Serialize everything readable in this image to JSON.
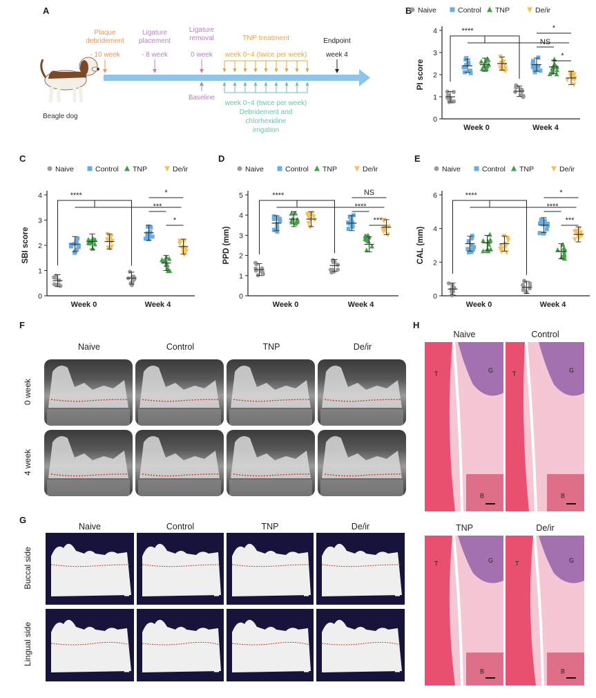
{
  "panels": {
    "A": "A",
    "B": "B",
    "C": "C",
    "D": "D",
    "E": "E",
    "F": "F",
    "G": "G",
    "H": "H"
  },
  "timeline": {
    "dog_label": "Beagle dog",
    "plaque": "Plaque debridement",
    "plaque_time": "- 10 week",
    "ligature_place": "Ligature placement",
    "ligature_place_time": "- 8 week",
    "ligature_remove": "Ligature removal",
    "ligature_remove_time": "0 week",
    "tnp_title": "TNP treatment",
    "tnp_time": "week 0~4 (twice per week)",
    "endpoint": "Endpoint",
    "endpoint_time": "week 4",
    "baseline": "Baseline",
    "deir_time": "week 0~4 (twice per week)",
    "deir_desc1": "Debridement and",
    "deir_desc2": "chlorhexidine",
    "deir_desc3": "irrigation"
  },
  "legend": [
    "Naive",
    "Control",
    "TNP",
    "De/ir"
  ],
  "colors": {
    "Naive": "#9b9b9b",
    "Control": "#6aaee0",
    "TNP": "#43a047",
    "De/ir": "#f3c15a",
    "arrow": "#8ec5ea"
  },
  "chart_data": [
    {
      "id": "B",
      "type": "scatter",
      "ylabel": "PI score",
      "ylim": [
        0,
        4
      ],
      "ticks": [
        0,
        1,
        2,
        3,
        4
      ],
      "categories": [
        "Week 0",
        "Week 4"
      ],
      "series": [
        {
          "name": "Naive",
          "values": [
            1.0,
            1.25
          ]
        },
        {
          "name": "Control",
          "values": [
            2.4,
            2.45
          ]
        },
        {
          "name": "TNP",
          "values": [
            2.45,
            2.35
          ]
        },
        {
          "name": "De/ir",
          "values": [
            2.5,
            1.85
          ]
        }
      ],
      "annotations": [
        "****",
        "*",
        "NS",
        "*"
      ]
    },
    {
      "id": "C",
      "type": "scatter",
      "ylabel": "SBI score",
      "ylim": [
        0,
        4
      ],
      "ticks": [
        0,
        1,
        2,
        3,
        4
      ],
      "categories": [
        "Week 0",
        "Week 4"
      ],
      "series": [
        {
          "name": "Naive",
          "values": [
            0.6,
            0.7
          ]
        },
        {
          "name": "Control",
          "values": [
            2.05,
            2.5
          ]
        },
        {
          "name": "TNP",
          "values": [
            2.15,
            1.3
          ]
        },
        {
          "name": "De/ir",
          "values": [
            2.15,
            1.95
          ]
        }
      ],
      "annotations": [
        "****",
        "*",
        "***",
        "*"
      ]
    },
    {
      "id": "D",
      "type": "scatter",
      "ylabel": "PPD (mm)",
      "ylim": [
        0,
        5
      ],
      "ticks": [
        0,
        1,
        2,
        3,
        4,
        5
      ],
      "categories": [
        "Week 0",
        "Week 4"
      ],
      "series": [
        {
          "name": "Naive",
          "values": [
            1.3,
            1.5
          ]
        },
        {
          "name": "Control",
          "values": [
            3.6,
            3.6
          ]
        },
        {
          "name": "TNP",
          "values": [
            3.8,
            2.55
          ]
        },
        {
          "name": "De/ir",
          "values": [
            3.8,
            3.4
          ]
        }
      ],
      "annotations": [
        "****",
        "NS",
        "****",
        "***"
      ]
    },
    {
      "id": "E",
      "type": "scatter",
      "ylabel": "CAL (mm)",
      "ylim": [
        0,
        6
      ],
      "ticks": [
        0,
        2,
        4,
        6
      ],
      "categories": [
        "Week 0",
        "Week 4"
      ],
      "series": [
        {
          "name": "Naive",
          "values": [
            0.4,
            0.5
          ]
        },
        {
          "name": "Control",
          "values": [
            3.1,
            4.2
          ]
        },
        {
          "name": "TNP",
          "values": [
            3.15,
            2.65
          ]
        },
        {
          "name": "De/ir",
          "values": [
            3.1,
            3.65
          ]
        }
      ],
      "annotations": [
        "****",
        "*",
        "****",
        "***"
      ]
    }
  ],
  "F": {
    "cols": [
      "Naive",
      "Control",
      "TNP",
      "De/ir"
    ],
    "rows": [
      "0 week",
      "4 week"
    ]
  },
  "G": {
    "cols": [
      "Naive",
      "Control",
      "TNP",
      "De/ir"
    ],
    "rows": [
      "Buccal side",
      "Lingual side"
    ]
  },
  "H": {
    "top": [
      "Naive",
      "Control"
    ],
    "bottom": [
      "TNP",
      "De/ir"
    ],
    "labels": {
      "T": "T",
      "G": "G",
      "B": "B"
    }
  }
}
